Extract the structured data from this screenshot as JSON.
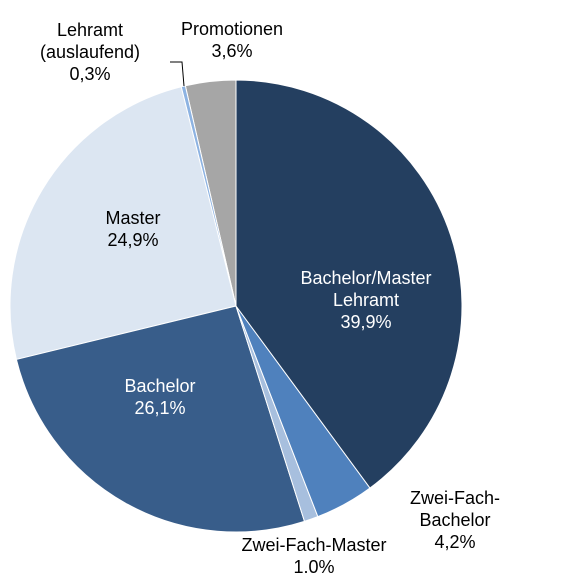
{
  "chart_data": {
    "type": "pie",
    "categories": [
      "Bachelor/Master Lehramt",
      "Zwei-Fach-Bachelor",
      "Zwei-Fach-Master",
      "Bachelor",
      "Master",
      "Lehramt (auslaufend)",
      "Promotionen"
    ],
    "values": [
      39.9,
      4.2,
      1.0,
      26.1,
      24.9,
      0.3,
      3.6
    ],
    "value_labels": [
      "39,9%",
      "4,2%",
      "1.0%",
      "26,1%",
      "24,9%",
      "0,3%",
      "3,6%"
    ],
    "colors": [
      "#243f60",
      "#4f81bd",
      "#a7bfde",
      "#385d8a",
      "#dce6f2",
      "#8db3e2",
      "#a6a6a6"
    ]
  }
}
